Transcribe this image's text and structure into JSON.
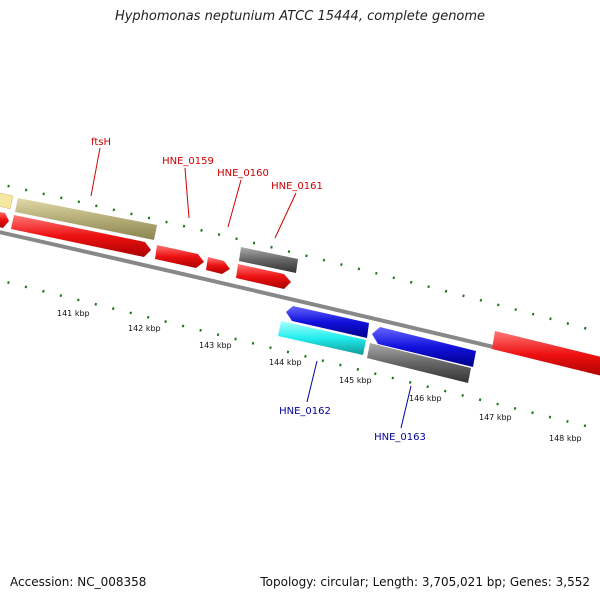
{
  "title": "Hyphomonas neptunium ATCC 15444, complete genome",
  "footer": {
    "accession": "Accession: NC_008358",
    "stats": "Topology: circular; Length: 3,705,021 bp; Genes: 3,552"
  },
  "ticks": [
    "141 kbp",
    "142 kbp",
    "143 kbp",
    "144 kbp",
    "145 kbp",
    "146 kbp",
    "147 kbp",
    "148 kbp"
  ],
  "gene_labels": [
    {
      "name": "ftsH",
      "color": "#cc0000"
    },
    {
      "name": "HNE_0159",
      "color": "#cc0000"
    },
    {
      "name": "HNE_0160",
      "color": "#cc0000"
    },
    {
      "name": "HNE_0161",
      "color": "#cc0000"
    },
    {
      "name": "HNE_0162",
      "color": "#000099"
    },
    {
      "name": "HNE_0163",
      "color": "#000099"
    }
  ],
  "colors": {
    "cds_forward": "#ee1111",
    "cds_reverse": "#1111dd",
    "rna_cyan": "#22eeee",
    "pseudo_gray": "#666666",
    "khaki": "#b5ad78",
    "pale_yellow": "#f5e7a0",
    "backbone": "#888888",
    "tick_green": "#1a7a1a"
  }
}
